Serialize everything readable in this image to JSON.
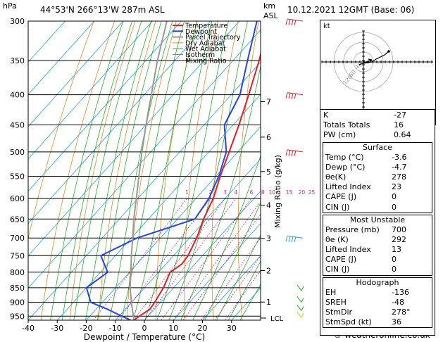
{
  "header": {
    "pressure_unit": "hPa",
    "location": "44°53'N  266°13'W  287m  ASL",
    "km_unit": "km",
    "km_sub": "ASL",
    "datetime": "10.12.2021  12GMT  (Base: 06)"
  },
  "chart_data": {
    "type": "line",
    "title": "Skew-T log-P diagram",
    "xlabel": "Dewpoint / Temperature (°C)",
    "ylabel": "hPa",
    "y2label": "Mixing Ratio (g/kg)",
    "x_ticks": [
      -40,
      -30,
      -20,
      -10,
      0,
      10,
      20,
      30
    ],
    "x_tick_labels": [
      "-40",
      "-30",
      "-20",
      "-10",
      "0",
      "10",
      "20",
      "30"
    ],
    "pressure_levels": [
      300,
      350,
      400,
      450,
      500,
      550,
      600,
      650,
      700,
      750,
      800,
      850,
      900,
      950
    ],
    "pressure_labels": [
      "300",
      "350",
      "400",
      "450",
      "500",
      "550",
      "600",
      "650",
      "700",
      "750",
      "800",
      "850",
      "900",
      "950"
    ],
    "km_ticks": [
      {
        "km": 1,
        "p": 899
      },
      {
        "km": 2,
        "p": 795
      },
      {
        "km": 3,
        "p": 701
      },
      {
        "km": 4,
        "p": 616
      },
      {
        "km": 5,
        "p": 540
      },
      {
        "km": 6,
        "p": 472
      },
      {
        "km": 7,
        "p": 411
      }
    ],
    "km_labels": [
      "1",
      "2",
      "3",
      "4",
      "5",
      "6",
      "7"
    ],
    "lcl_label": "LCL",
    "lcl_pressure": 965,
    "mixing_ratio_labels": [
      "1",
      "2",
      "3",
      "4",
      "6",
      "8",
      "10",
      "15",
      "20",
      "25"
    ],
    "legend": [
      "Temperature",
      "Dewpoint",
      "Parcel Trajectory",
      "Dry Adiabat",
      "Wet Adiabat",
      "Isotherm",
      "Mixing Ratio"
    ],
    "series": [
      {
        "name": "Temperature",
        "color": "#e0202a",
        "points": [
          [
            965,
            -3.6
          ],
          [
            950,
            -3.0
          ],
          [
            925,
            -1.5
          ],
          [
            900,
            -2.0
          ],
          [
            850,
            -3.5
          ],
          [
            800,
            -6.0
          ],
          [
            775,
            -4.5
          ],
          [
            750,
            -5.0
          ],
          [
            700,
            -7.5
          ],
          [
            650,
            -11.0
          ],
          [
            600,
            -14.0
          ],
          [
            550,
            -18.5
          ],
          [
            500,
            -23.0
          ],
          [
            450,
            -28.0
          ],
          [
            400,
            -34.0
          ],
          [
            350,
            -41.0
          ],
          [
            300,
            -50.0
          ]
        ]
      },
      {
        "name": "Dewpoint",
        "color": "#2a44dd",
        "points": [
          [
            965,
            -4.7
          ],
          [
            950,
            -9.0
          ],
          [
            925,
            -16.0
          ],
          [
            900,
            -24.0
          ],
          [
            850,
            -30.0
          ],
          [
            800,
            -27.5
          ],
          [
            750,
            -35.0
          ],
          [
            700,
            -28.0
          ],
          [
            650,
            -14.0
          ],
          [
            600,
            -15.5
          ],
          [
            550,
            -19.0
          ],
          [
            500,
            -24.0
          ],
          [
            450,
            -33.0
          ],
          [
            400,
            -37.0
          ],
          [
            350,
            -45.0
          ],
          [
            300,
            -54.0
          ]
        ]
      },
      {
        "name": "Parcel Trajectory",
        "color": "#999999",
        "points": [
          [
            965,
            -3.6
          ],
          [
            900,
            -10.0
          ],
          [
            850,
            -15.0
          ],
          [
            800,
            -19.5
          ],
          [
            750,
            -24.5
          ],
          [
            700,
            -29.5
          ],
          [
            650,
            -35.0
          ],
          [
            600,
            -40.5
          ],
          [
            550,
            -46.5
          ],
          [
            500,
            -53.0
          ],
          [
            450,
            -60.0
          ],
          [
            400,
            -67.5
          ],
          [
            350,
            -76.0
          ],
          [
            300,
            -85.0
          ]
        ]
      }
    ]
  },
  "colors": {
    "temperature": "#e0202a",
    "dewpoint": "#2a44dd",
    "parcel": "#999999",
    "dry_adiabat": "#d98b2a",
    "wet_adiabat": "#2aaa2a",
    "isotherm": "#22a6d9",
    "mixing_ratio": "#cc22aa"
  },
  "hodograph": {
    "unit": "kt",
    "ring_labels": [
      "40",
      "80",
      "120"
    ]
  },
  "indices": {
    "rows": [
      {
        "label": "K",
        "value": "-27"
      },
      {
        "label": "Totals Totals",
        "value": "16"
      },
      {
        "label": "PW (cm)",
        "value": "0.64"
      }
    ]
  },
  "surface": {
    "title": "Surface",
    "rows": [
      {
        "label": "Temp (°C)",
        "value": "-3.6"
      },
      {
        "label": "Dewp (°C)",
        "value": "-4.7"
      },
      {
        "label": "θe(K)",
        "value": "278"
      },
      {
        "label": "Lifted Index",
        "value": "23"
      },
      {
        "label": "CAPE (J)",
        "value": "0"
      },
      {
        "label": "CIN (J)",
        "value": "0"
      }
    ]
  },
  "most_unstable": {
    "title": "Most Unstable",
    "rows": [
      {
        "label": "Pressure (mb)",
        "value": "700"
      },
      {
        "label": "θe (K)",
        "value": "292"
      },
      {
        "label": "Lifted Index",
        "value": "13"
      },
      {
        "label": "CAPE (J)",
        "value": "0"
      },
      {
        "label": "CIN (J)",
        "value": "0"
      }
    ]
  },
  "hodograph_table": {
    "title": "Hodograph",
    "rows": [
      {
        "label": "EH",
        "value": "-136"
      },
      {
        "label": "SREH",
        "value": "-48"
      },
      {
        "label": "StmDir",
        "value": "278°"
      },
      {
        "label": "StmSpd (kt)",
        "value": "36"
      }
    ]
  },
  "footer": {
    "copyright": "© weatheronline.co.uk"
  }
}
